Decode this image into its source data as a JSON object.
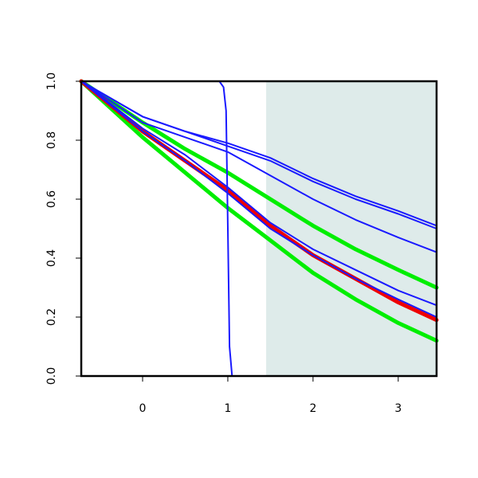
{
  "chart_data": {
    "type": "line",
    "title": "",
    "xlabel": "",
    "ylabel": "",
    "xlim": [
      -0.72,
      3.45
    ],
    "ylim": [
      0,
      1
    ],
    "x_ticks": [
      0,
      1,
      2,
      3
    ],
    "x_tick_labels": [
      "0",
      "1",
      "2",
      "3"
    ],
    "y_ticks": [
      0,
      0.2,
      0.4,
      0.6,
      0.8,
      1
    ],
    "y_tick_labels": [
      "0.0",
      "0.2",
      "0.4",
      "0.6",
      "0.8",
      "1.0"
    ],
    "grid": false,
    "legend": "none",
    "shaded_region": {
      "x_start": 1.45,
      "x_end": 3.45,
      "color": "#deebea"
    },
    "series": [
      {
        "color": "#1a1aff",
        "width": "thin",
        "points": [
          [
            -0.72,
            1.0
          ],
          [
            0.9,
            1.0
          ],
          [
            0.95,
            0.98
          ],
          [
            0.98,
            0.9
          ],
          [
            1.0,
            0.5
          ],
          [
            1.02,
            0.1
          ],
          [
            1.05,
            0.0
          ],
          [
            3.45,
            0.0
          ]
        ]
      },
      {
        "color": "#1a1aff",
        "width": "thin",
        "points": [
          [
            -0.72,
            1.0
          ],
          [
            0,
            0.88
          ],
          [
            0.5,
            0.83
          ],
          [
            1,
            0.79
          ],
          [
            1.5,
            0.74
          ],
          [
            2,
            0.67
          ],
          [
            2.5,
            0.61
          ],
          [
            3,
            0.56
          ],
          [
            3.45,
            0.51
          ]
        ]
      },
      {
        "color": "#1a1aff",
        "width": "thin",
        "points": [
          [
            -0.72,
            1.0
          ],
          [
            0,
            0.88
          ],
          [
            0.5,
            0.83
          ],
          [
            1,
            0.78
          ],
          [
            1.5,
            0.73
          ],
          [
            2,
            0.66
          ],
          [
            2.5,
            0.6
          ],
          [
            3,
            0.55
          ],
          [
            3.45,
            0.5
          ]
        ]
      },
      {
        "color": "#1a1aff",
        "width": "thin",
        "points": [
          [
            -0.72,
            1.0
          ],
          [
            0,
            0.86
          ],
          [
            0.5,
            0.81
          ],
          [
            1,
            0.76
          ],
          [
            1.5,
            0.68
          ],
          [
            2,
            0.6
          ],
          [
            2.5,
            0.53
          ],
          [
            3,
            0.47
          ],
          [
            3.45,
            0.42
          ]
        ]
      },
      {
        "color": "#1a1aff",
        "width": "thin",
        "points": [
          [
            -0.72,
            1.0
          ],
          [
            0,
            0.84
          ],
          [
            0.5,
            0.75
          ],
          [
            1,
            0.64
          ],
          [
            1.5,
            0.52
          ],
          [
            2,
            0.43
          ],
          [
            2.5,
            0.36
          ],
          [
            3,
            0.29
          ],
          [
            3.45,
            0.24
          ]
        ]
      },
      {
        "color": "#1a1aff",
        "width": "thin",
        "points": [
          [
            -0.72,
            1.0
          ],
          [
            0,
            0.83
          ],
          [
            0.5,
            0.73
          ],
          [
            1,
            0.62
          ],
          [
            1.5,
            0.5
          ],
          [
            2,
            0.41
          ],
          [
            2.5,
            0.33
          ],
          [
            3,
            0.26
          ],
          [
            3.45,
            0.2
          ]
        ]
      },
      {
        "color": "#00ee00",
        "width": "thick",
        "points": [
          [
            -0.72,
            1.0
          ],
          [
            0,
            0.86
          ],
          [
            0.5,
            0.77
          ],
          [
            1,
            0.69
          ],
          [
            1.5,
            0.6
          ],
          [
            2,
            0.51
          ],
          [
            2.5,
            0.43
          ],
          [
            3,
            0.36
          ],
          [
            3.45,
            0.3
          ]
        ]
      },
      {
        "color": "#00ee00",
        "width": "thick",
        "points": [
          [
            -0.72,
            1.0
          ],
          [
            0,
            0.81
          ],
          [
            0.5,
            0.69
          ],
          [
            1,
            0.57
          ],
          [
            1.5,
            0.46
          ],
          [
            2,
            0.35
          ],
          [
            2.5,
            0.26
          ],
          [
            3,
            0.18
          ],
          [
            3.45,
            0.12
          ]
        ]
      },
      {
        "color": "#ee0000",
        "width": "thick",
        "points": [
          [
            -0.72,
            1.0
          ],
          [
            0,
            0.83
          ],
          [
            0.5,
            0.73
          ],
          [
            1,
            0.63
          ],
          [
            1.5,
            0.51
          ],
          [
            2,
            0.41
          ],
          [
            2.5,
            0.33
          ],
          [
            3,
            0.25
          ],
          [
            3.45,
            0.19
          ]
        ]
      }
    ]
  }
}
